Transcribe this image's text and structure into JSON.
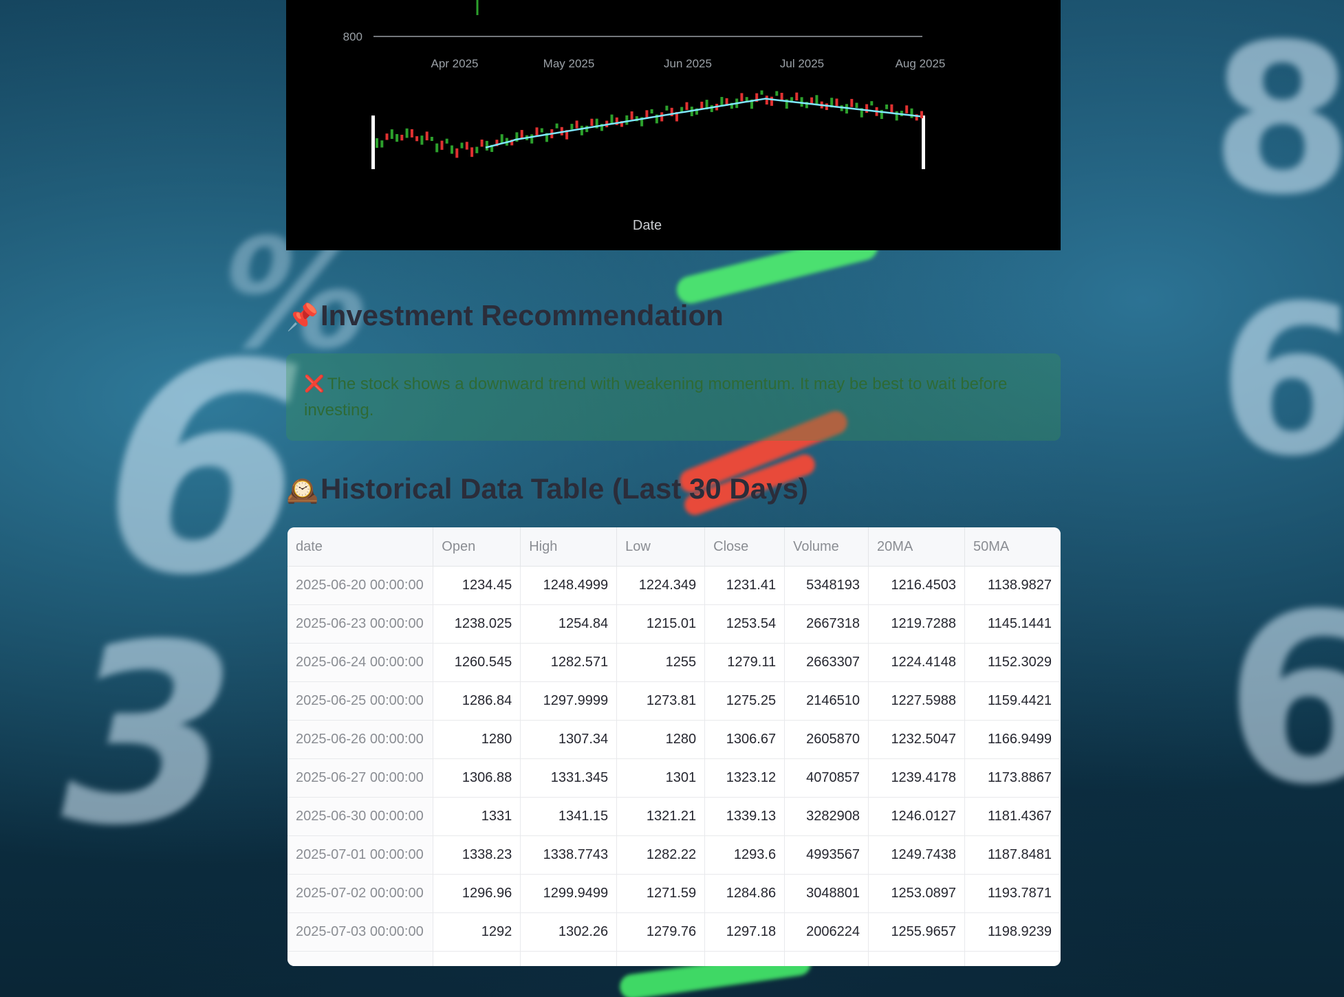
{
  "chart": {
    "price_tick": "800",
    "date_ticks": [
      "Apr 2025",
      "May 2025",
      "Jun 2025",
      "Jul 2025",
      "Aug 2025"
    ],
    "xlabel": "Date",
    "colors": {
      "background": "#000000",
      "up": "#2ca02c",
      "down": "#e03131",
      "ma": "#7fe8ff"
    }
  },
  "chart_data": {
    "type": "line",
    "x": [
      "Apr 2025",
      "May 2025",
      "Jun 2025",
      "Jul 2025",
      "Aug 2025"
    ],
    "xlabel": "Date",
    "ylabel": "",
    "ytick_visible": [
      "800"
    ],
    "series": []
  },
  "recommendation": {
    "emoji": "📌",
    "heading": "Investment Recommendation",
    "icon": "❌",
    "message": "The stock shows a downward trend with weakening momentum. It may be best to wait before investing."
  },
  "history": {
    "emoji": "🕰️",
    "heading": "Historical Data Table (Last 30 Days)",
    "columns": [
      "date",
      "Open",
      "High",
      "Low",
      "Close",
      "Volume",
      "20MA",
      "50MA"
    ],
    "rows": [
      [
        "2025-06-20 00:00:00",
        "1234.45",
        "1248.4999",
        "1224.349",
        "1231.41",
        "5348193",
        "1216.4503",
        "1138.9827"
      ],
      [
        "2025-06-23 00:00:00",
        "1238.025",
        "1254.84",
        "1215.01",
        "1253.54",
        "2667318",
        "1219.7288",
        "1145.1441"
      ],
      [
        "2025-06-24 00:00:00",
        "1260.545",
        "1282.571",
        "1255",
        "1279.11",
        "2663307",
        "1224.4148",
        "1152.3029"
      ],
      [
        "2025-06-25 00:00:00",
        "1286.84",
        "1297.9999",
        "1273.81",
        "1275.25",
        "2146510",
        "1227.5988",
        "1159.4421"
      ],
      [
        "2025-06-26 00:00:00",
        "1280",
        "1307.34",
        "1280",
        "1306.67",
        "2605870",
        "1232.5047",
        "1166.9499"
      ],
      [
        "2025-06-27 00:00:00",
        "1306.88",
        "1331.345",
        "1301",
        "1323.12",
        "4070857",
        "1239.4178",
        "1173.8867"
      ],
      [
        "2025-06-30 00:00:00",
        "1331",
        "1341.15",
        "1321.21",
        "1339.13",
        "3282908",
        "1246.0127",
        "1181.4367"
      ],
      [
        "2025-07-01 00:00:00",
        "1338.23",
        "1338.7743",
        "1282.22",
        "1293.6",
        "4993567",
        "1249.7438",
        "1187.8481"
      ],
      [
        "2025-07-02 00:00:00",
        "1296.96",
        "1299.9499",
        "1271.59",
        "1284.86",
        "3048801",
        "1253.0897",
        "1193.7871"
      ],
      [
        "2025-07-03 00:00:00",
        "1292",
        "1302.26",
        "1279.76",
        "1297.18",
        "2006224",
        "1255.9657",
        "1198.9239"
      ]
    ]
  }
}
